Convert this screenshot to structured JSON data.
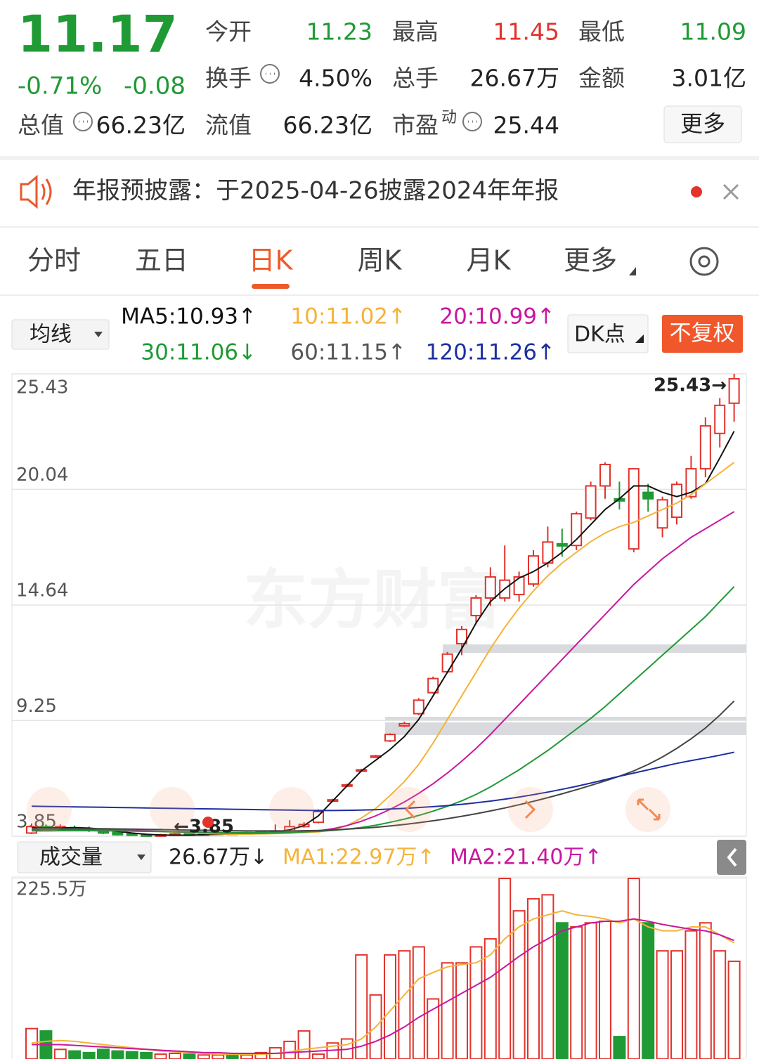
{
  "header": {
    "price": "11.17",
    "change_pct": "-0.71%",
    "change": "-0.08",
    "fields": [
      {
        "label": "今开",
        "value": "11.23",
        "color": "#1f9a35"
      },
      {
        "label": "最高",
        "value": "11.45",
        "color": "#e2332c"
      },
      {
        "label": "最低",
        "value": "11.09",
        "color": "#1f9a35"
      },
      {
        "label": "换手",
        "value": "4.50%",
        "color": "#222222"
      },
      {
        "label": "总手",
        "value": "26.67万",
        "color": "#222222"
      },
      {
        "label": "金额",
        "value": "3.01亿",
        "color": "#222222"
      },
      {
        "label": "总值",
        "value": "66.23亿",
        "color": "#222222"
      },
      {
        "label": "流值",
        "value": "66.23亿",
        "color": "#222222"
      },
      {
        "label": "市盈",
        "sup": "动",
        "value": "25.44",
        "color": "#222222"
      }
    ],
    "more": "更多"
  },
  "notice": "年报预披露：于2025-04-26披露2024年年报",
  "tabs": {
    "items": [
      "分时",
      "五日",
      "日K",
      "周K",
      "月K",
      "更多"
    ],
    "active": 2
  },
  "ma_bar": {
    "selector": "均线",
    "items": [
      {
        "text": "MA5:10.93↑",
        "color": "#111111"
      },
      {
        "text": "10:11.02↑",
        "color": "#f5b33a"
      },
      {
        "text": "20:10.99↑",
        "color": "#c8189e"
      },
      {
        "text": "30:11.06↓",
        "color": "#1f9a35"
      },
      {
        "text": "60:11.15↑",
        "color": "#555555"
      },
      {
        "text": "120:11.26↑",
        "color": "#1d2fa0"
      }
    ],
    "dk": "DK点",
    "fq": "不复权"
  },
  "volume_bar": {
    "selector": "成交量",
    "total": "26.67万↓",
    "ma1": {
      "text": "MA1:22.97万↑",
      "color": "#f5b33a"
    },
    "ma2": {
      "text": "MA2:21.40万↑",
      "color": "#c8189e"
    }
  },
  "watermark": "东方财富",
  "chart_data": [
    {
      "type": "candlestick",
      "ylim": [
        3.85,
        25.43
      ],
      "yticks": [
        25.43,
        20.04,
        14.64,
        9.25,
        3.85
      ],
      "up_color": "#e2332c",
      "down_color": "#1f9a35",
      "annotations": [
        {
          "text": "25.43→"
        },
        {
          "text": "←3.85"
        }
      ],
      "open": [
        4.0,
        4.3,
        4.2,
        4.25,
        4.2,
        4.15,
        4.05,
        3.96,
        3.92,
        3.88,
        3.92,
        3.96,
        3.94,
        3.97,
        4.0,
        3.98,
        4.02,
        4.05,
        4.1,
        4.3,
        4.5,
        5.5,
        6.2,
        6.9,
        7.55,
        8.3,
        9.0,
        9.57,
        10.55,
        11.53,
        12.84,
        14.15,
        14.97,
        14.97,
        15.13,
        15.62,
        16.6,
        17.5,
        17.42,
        18.7,
        20.2,
        19.6,
        17.26,
        19.9,
        18.24,
        18.74,
        19.7,
        21.0,
        22.65,
        24.06
      ],
      "close": [
        4.3,
        4.2,
        4.3,
        4.2,
        4.15,
        4.0,
        3.92,
        3.9,
        3.88,
        3.92,
        3.96,
        3.94,
        3.97,
        4.0,
        3.98,
        4.02,
        4.05,
        4.1,
        4.3,
        4.4,
        5.0,
        5.55,
        6.25,
        6.95,
        7.6,
        8.6,
        9.1,
        10.2,
        11.21,
        12.35,
        13.5,
        14.97,
        15.95,
        15.8,
        15.95,
        16.93,
        17.58,
        17.4,
        18.9,
        20.2,
        21.2,
        19.5,
        21.0,
        19.6,
        19.55,
        20.27,
        21.0,
        23.0,
        23.96,
        25.2
      ],
      "high": [
        4.45,
        4.4,
        4.4,
        4.35,
        4.3,
        4.2,
        4.08,
        4.0,
        3.96,
        3.96,
        4.0,
        4.0,
        4.02,
        4.05,
        4.04,
        4.06,
        4.1,
        4.4,
        4.6,
        4.5,
        5.1,
        5.6,
        6.3,
        7.0,
        7.65,
        8.65,
        9.2,
        10.3,
        11.3,
        12.45,
        13.66,
        15.1,
        16.4,
        17.42,
        16.2,
        17.2,
        18.3,
        18.2,
        19.0,
        20.4,
        21.3,
        20.4,
        21.0,
        20.3,
        19.7,
        20.4,
        21.6,
        23.4,
        24.3,
        25.43
      ],
      "low": [
        3.95,
        4.1,
        4.12,
        4.1,
        4.05,
        3.95,
        3.88,
        3.87,
        3.85,
        3.86,
        3.88,
        3.9,
        3.91,
        3.93,
        3.94,
        3.95,
        3.98,
        4.0,
        4.05,
        4.25,
        4.45,
        5.45,
        6.15,
        6.85,
        7.5,
        8.25,
        8.95,
        9.5,
        10.5,
        11.45,
        12.3,
        13.8,
        14.6,
        14.8,
        14.8,
        15.5,
        16.4,
        16.9,
        17.2,
        18.6,
        19.6,
        19.1,
        17.1,
        19.0,
        17.8,
        18.4,
        19.6,
        20.6,
        22.0,
        23.2
      ],
      "series": [
        {
          "name": "MA5",
          "color": "#111111",
          "values": [
            4.25,
            4.24,
            4.24,
            4.25,
            4.23,
            4.17,
            4.08,
            4.0,
            3.94,
            3.91,
            3.9,
            3.9,
            3.92,
            3.94,
            3.96,
            3.98,
            4.01,
            4.05,
            4.15,
            4.35,
            4.8,
            5.5,
            6.2,
            6.9,
            7.4,
            7.9,
            8.5,
            9.3,
            10.4,
            11.5,
            12.6,
            13.8,
            14.8,
            15.4,
            15.9,
            16.2,
            16.6,
            17.1,
            17.7,
            18.4,
            19.1,
            19.6,
            20.2,
            20.2,
            19.9,
            19.7,
            19.9,
            20.3,
            21.5,
            22.75
          ]
        },
        {
          "name": "MA10",
          "color": "#f5b33a",
          "values": [
            4.15,
            4.16,
            4.17,
            4.17,
            4.18,
            4.18,
            4.16,
            4.12,
            4.09,
            4.07,
            4.04,
            4.01,
            3.98,
            3.96,
            3.95,
            3.95,
            3.96,
            3.97,
            3.99,
            4.03,
            4.05,
            4.15,
            4.35,
            4.7,
            5.15,
            5.75,
            6.4,
            7.2,
            8.2,
            9.3,
            10.4,
            11.5,
            12.6,
            13.6,
            14.5,
            15.3,
            16.0,
            16.6,
            17.1,
            17.6,
            18.0,
            18.3,
            18.5,
            18.8,
            19.1,
            19.4,
            19.8,
            20.3,
            20.8,
            21.3
          ]
        },
        {
          "name": "MA20",
          "color": "#c8189e",
          "values": [
            4.15,
            4.15,
            4.16,
            4.16,
            4.16,
            4.15,
            4.14,
            4.12,
            4.1,
            4.08,
            4.06,
            4.04,
            4.02,
            4.0,
            3.99,
            3.99,
            3.99,
            4.0,
            4.02,
            4.05,
            4.1,
            4.2,
            4.35,
            4.55,
            4.8,
            5.1,
            5.45,
            5.85,
            6.3,
            6.8,
            7.35,
            7.95,
            8.6,
            9.3,
            10.0,
            10.7,
            11.4,
            12.1,
            12.8,
            13.5,
            14.2,
            14.9,
            15.6,
            16.2,
            16.8,
            17.3,
            17.8,
            18.2,
            18.6,
            19.0
          ]
        },
        {
          "name": "MA30",
          "color": "#1f9a35",
          "values": [
            4.1,
            4.1,
            4.11,
            4.11,
            4.11,
            4.1,
            4.1,
            4.09,
            4.08,
            4.07,
            4.06,
            4.05,
            4.04,
            4.03,
            4.02,
            4.02,
            4.02,
            4.03,
            4.04,
            4.05,
            4.08,
            4.12,
            4.18,
            4.26,
            4.36,
            4.5,
            4.65,
            4.82,
            5.02,
            5.25,
            5.5,
            5.8,
            6.15,
            6.55,
            6.95,
            7.4,
            7.85,
            8.35,
            8.85,
            9.35,
            9.9,
            10.5,
            11.1,
            11.7,
            12.3,
            12.9,
            13.5,
            14.1,
            14.8,
            15.5
          ]
        },
        {
          "name": "MA60",
          "color": "#444444",
          "values": [
            4.22,
            4.22,
            4.21,
            4.21,
            4.2,
            4.2,
            4.19,
            4.18,
            4.17,
            4.16,
            4.15,
            4.14,
            4.13,
            4.12,
            4.11,
            4.1,
            4.1,
            4.1,
            4.1,
            4.11,
            4.12,
            4.15,
            4.18,
            4.22,
            4.27,
            4.33,
            4.4,
            4.48,
            4.57,
            4.67,
            4.78,
            4.9,
            5.03,
            5.17,
            5.32,
            5.48,
            5.65,
            5.83,
            6.02,
            6.22,
            6.43,
            6.65,
            6.9,
            7.2,
            7.55,
            7.95,
            8.4,
            8.9,
            9.5,
            10.16
          ]
        },
        {
          "name": "MA120",
          "color": "#1d2fa0",
          "values": [
            5.25,
            5.24,
            5.23,
            5.22,
            5.21,
            5.2,
            5.19,
            5.18,
            5.17,
            5.16,
            5.15,
            5.14,
            5.13,
            5.12,
            5.11,
            5.1,
            5.09,
            5.08,
            5.07,
            5.06,
            5.05,
            5.05,
            5.06,
            5.07,
            5.09,
            5.12,
            5.15,
            5.19,
            5.23,
            5.28,
            5.34,
            5.41,
            5.49,
            5.58,
            5.68,
            5.79,
            5.91,
            6.04,
            6.18,
            6.33,
            6.49,
            6.65,
            6.8,
            6.95,
            7.1,
            7.25,
            7.38,
            7.5,
            7.63,
            7.77
          ]
        }
      ]
    },
    {
      "type": "volume",
      "ylim": [
        0,
        225.5
      ],
      "yticks": [
        {
          "value": 225.5,
          "label": "225.5万"
        }
      ],
      "values": [
        38,
        35,
        12,
        10,
        8,
        12,
        10,
        9,
        8,
        6,
        7,
        6,
        5,
        5,
        6,
        5,
        8,
        14,
        22,
        35,
        6,
        20,
        25,
        130,
        80,
        130,
        135,
        140,
        75,
        120,
        120,
        140,
        150,
        225.5,
        185,
        200,
        205,
        170,
        165,
        170,
        172,
        28,
        225.5,
        170,
        135,
        135,
        160,
        170,
        135,
        122
      ],
      "series": [
        {
          "name": "MA1",
          "color": "#f5b33a",
          "values": [
            20,
            22,
            23,
            22,
            20,
            18,
            16,
            14,
            12,
            10,
            9,
            8,
            7,
            6,
            6,
            6,
            6,
            7,
            9,
            12,
            14,
            16,
            18,
            25,
            40,
            60,
            80,
            100,
            108,
            115,
            118,
            120,
            130,
            150,
            165,
            175,
            180,
            185,
            180,
            178,
            175,
            170,
            175,
            165,
            160,
            160,
            165,
            165,
            155,
            145
          ]
        },
        {
          "name": "MA2",
          "color": "#c8189e",
          "values": [
            18,
            18,
            18,
            17,
            16,
            15,
            14,
            13,
            12,
            11,
            10,
            9,
            8,
            8,
            7,
            7,
            7,
            7,
            8,
            9,
            10,
            11,
            12,
            16,
            22,
            30,
            40,
            52,
            62,
            72,
            82,
            92,
            102,
            115,
            128,
            140,
            150,
            160,
            165,
            170,
            172,
            172,
            175,
            172,
            168,
            165,
            162,
            160,
            155,
            148
          ]
        }
      ]
    }
  ]
}
